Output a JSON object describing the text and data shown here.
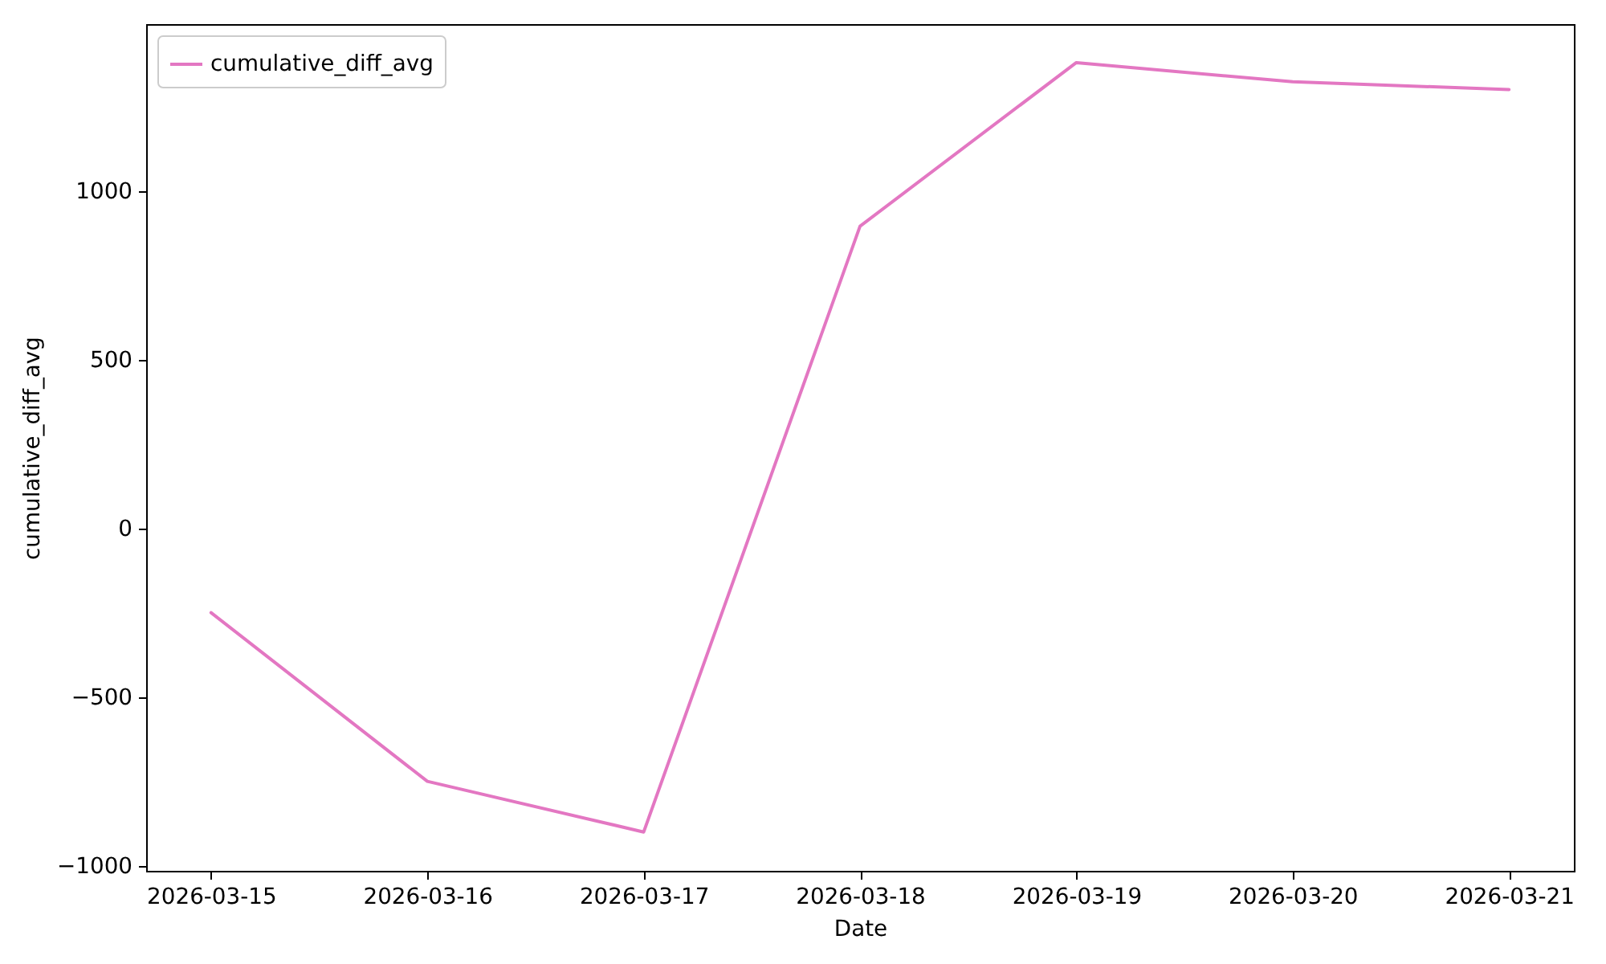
{
  "chart_data": {
    "type": "line",
    "xlabel": "Date",
    "ylabel": "cumulative_diff_avg",
    "x": [
      "2026-03-15",
      "2026-03-16",
      "2026-03-17",
      "2026-03-18",
      "2026-03-19",
      "2026-03-20",
      "2026-03-21"
    ],
    "series": [
      {
        "name": "cumulative_diff_avg",
        "color": "#e377c2",
        "values": [
          -250,
          -750,
          -900,
          895,
          1380,
          1323,
          1300
        ]
      }
    ],
    "xlim": [
      "2026-03-14T16:48",
      "2026-03-21T07:12"
    ],
    "ylim": [
      -1015,
      1494
    ],
    "xticks": [
      "2026-03-15",
      "2026-03-16",
      "2026-03-17",
      "2026-03-18",
      "2026-03-19",
      "2026-03-20",
      "2026-03-21"
    ],
    "yticks": [
      -1000,
      -500,
      0,
      500,
      1000
    ],
    "legend": "top left",
    "grid": false,
    "marker": "none",
    "line_style": "solid"
  }
}
